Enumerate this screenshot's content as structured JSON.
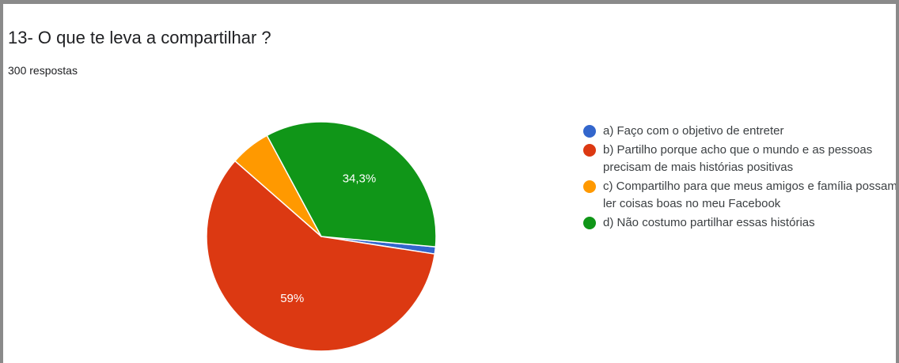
{
  "title": "13- O que te leva a compartilhar ?",
  "subtitle": "300 respostas",
  "chart_data": {
    "type": "pie",
    "title": "13- O que te leva a compartilhar ?",
    "subtitle": "300 respostas",
    "categories": [
      "a) Faço com o objetivo de entreter",
      "b) Partilho porque acho que o mundo e as pessoas precisam de mais histórias positivas",
      "c) Compartilho para que meus amigos e família possam ler coisas boas no meu Facebook",
      "d) Não costumo partilhar essas histórias"
    ],
    "values": [
      1.0,
      59.0,
      5.7,
      34.3
    ],
    "unit": "%",
    "data_labels": [
      "",
      "59%",
      "",
      "34,3%"
    ],
    "colors": [
      "#3366cc",
      "#dc3912",
      "#ff9900",
      "#109618"
    ],
    "legend_position": "right"
  }
}
